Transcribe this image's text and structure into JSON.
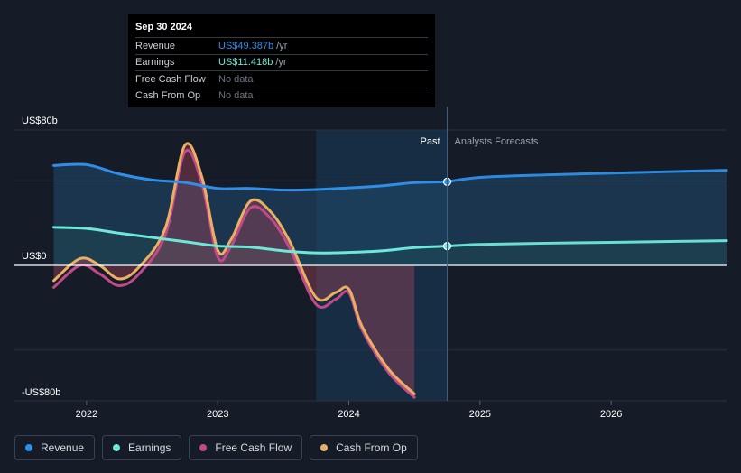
{
  "tooltip": {
    "date": "Sep 30 2024",
    "rows": [
      {
        "label": "Revenue",
        "value": "US$49.387b",
        "unit": "/yr",
        "color": "#2f8fe8"
      },
      {
        "label": "Earnings",
        "value": "US$11.418b",
        "unit": "/yr",
        "color": "#6ee8d8"
      },
      {
        "label": "Free Cash Flow",
        "value": "No data",
        "unit": "",
        "color": "#6b7280"
      },
      {
        "label": "Cash From Op",
        "value": "No data",
        "unit": "",
        "color": "#6b7280"
      }
    ]
  },
  "colors": {
    "revenue": "#2f8fe8",
    "earnings": "#6ee8d8",
    "fcf": "#c24a8a",
    "cfo": "#e8b062",
    "past_band": "#1a3550",
    "background": "#151b27"
  },
  "legend": [
    {
      "label": "Revenue",
      "color": "#2f8fe8"
    },
    {
      "label": "Earnings",
      "color": "#6ee8d8"
    },
    {
      "label": "Free Cash Flow",
      "color": "#c24a8a"
    },
    {
      "label": "Cash From Op",
      "color": "#e8b062"
    }
  ],
  "chart_data": {
    "type": "line",
    "title": "",
    "y_labels": [
      "US$80b",
      "US$0",
      "-US$80b"
    ],
    "x_ticks": [
      {
        "label": "2022",
        "x": 2022.0
      },
      {
        "label": "2023",
        "x": 2023.0
      },
      {
        "label": "2024",
        "x": 2024.0
      },
      {
        "label": "2025",
        "x": 2025.0
      },
      {
        "label": "2026",
        "x": 2026.0
      }
    ],
    "xlim": [
      2021.45,
      2026.88
    ],
    "ylim": [
      -80,
      80
    ],
    "past_label": "Past",
    "forecast_label": "Analysts Forecasts",
    "highlight_start": 2023.75,
    "divider_x": 2024.75,
    "series": [
      {
        "name": "Revenue",
        "key": "revenue",
        "points": [
          [
            2021.75,
            59
          ],
          [
            2022.0,
            59.5
          ],
          [
            2022.25,
            54
          ],
          [
            2022.5,
            50.5
          ],
          [
            2022.75,
            49
          ],
          [
            2023.0,
            45.5
          ],
          [
            2023.25,
            45.5
          ],
          [
            2023.5,
            44.5
          ],
          [
            2023.75,
            44.8
          ],
          [
            2024.0,
            45.8
          ],
          [
            2024.25,
            47
          ],
          [
            2024.5,
            48.9
          ],
          [
            2024.75,
            49.4
          ]
        ],
        "forecast": [
          [
            2024.75,
            49.4
          ],
          [
            2025.0,
            52
          ],
          [
            2025.5,
            53.5
          ],
          [
            2026.0,
            54.5
          ],
          [
            2026.5,
            55.5
          ],
          [
            2026.88,
            56.2
          ]
        ]
      },
      {
        "name": "Earnings",
        "key": "earnings",
        "points": [
          [
            2021.75,
            22.5
          ],
          [
            2022.0,
            21.8
          ],
          [
            2022.25,
            19
          ],
          [
            2022.5,
            16.5
          ],
          [
            2022.75,
            14
          ],
          [
            2023.0,
            11.5
          ],
          [
            2023.25,
            10.8
          ],
          [
            2023.5,
            8.6
          ],
          [
            2023.75,
            7.4
          ],
          [
            2024.0,
            7.7
          ],
          [
            2024.25,
            8.6
          ],
          [
            2024.5,
            10.5
          ],
          [
            2024.75,
            11.4
          ]
        ],
        "forecast": [
          [
            2024.75,
            11.4
          ],
          [
            2025.0,
            12.4
          ],
          [
            2025.5,
            13.1
          ],
          [
            2026.0,
            13.6
          ],
          [
            2026.5,
            14.2
          ],
          [
            2026.88,
            14.6
          ]
        ]
      },
      {
        "name": "Free Cash Flow",
        "key": "fcf",
        "points": [
          [
            2021.75,
            -13
          ],
          [
            2021.95,
            0
          ],
          [
            2022.1,
            -5
          ],
          [
            2022.25,
            -12
          ],
          [
            2022.4,
            -5
          ],
          [
            2022.6,
            18
          ],
          [
            2022.75,
            67
          ],
          [
            2022.88,
            48
          ],
          [
            2023.0,
            5
          ],
          [
            2023.1,
            11
          ],
          [
            2023.25,
            34
          ],
          [
            2023.4,
            28
          ],
          [
            2023.55,
            10
          ],
          [
            2023.75,
            -23
          ],
          [
            2023.9,
            -20
          ],
          [
            2024.0,
            -16
          ],
          [
            2024.1,
            -38
          ],
          [
            2024.3,
            -63
          ],
          [
            2024.5,
            -78
          ]
        ]
      },
      {
        "name": "Cash From Op",
        "key": "cfo",
        "points": [
          [
            2021.75,
            -9
          ],
          [
            2021.95,
            4
          ],
          [
            2022.1,
            0
          ],
          [
            2022.25,
            -8
          ],
          [
            2022.4,
            -1
          ],
          [
            2022.6,
            22
          ],
          [
            2022.75,
            71
          ],
          [
            2022.88,
            52
          ],
          [
            2023.0,
            9
          ],
          [
            2023.1,
            15
          ],
          [
            2023.25,
            38
          ],
          [
            2023.4,
            32
          ],
          [
            2023.55,
            14
          ],
          [
            2023.75,
            -19
          ],
          [
            2023.9,
            -16
          ],
          [
            2024.0,
            -14
          ],
          [
            2024.1,
            -36
          ],
          [
            2024.3,
            -61
          ],
          [
            2024.5,
            -76
          ]
        ]
      }
    ]
  }
}
